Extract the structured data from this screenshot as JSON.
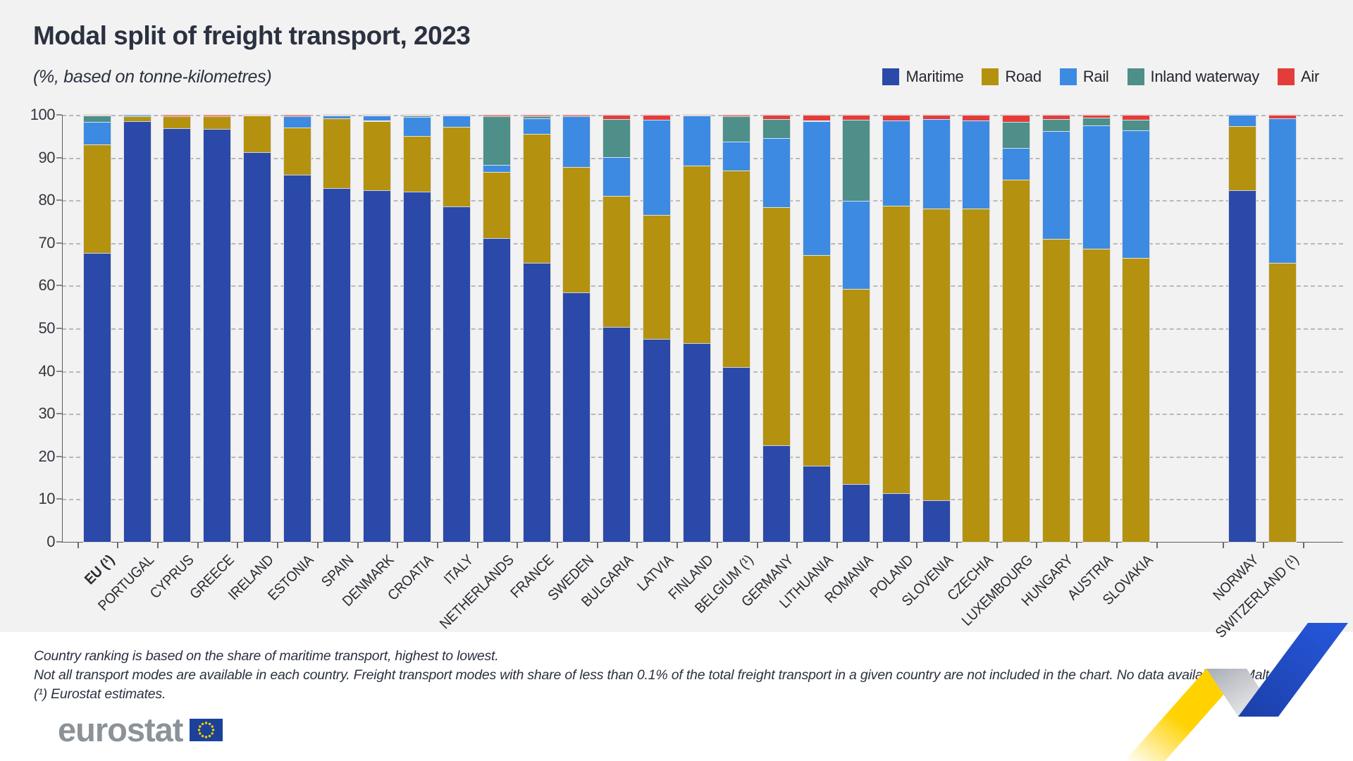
{
  "header": {
    "title": "Modal split of freight transport, 2023",
    "subtitle": "(%, based on tonne-kilometres)"
  },
  "legend": [
    {
      "label": "Maritime",
      "color": "#2b49a8"
    },
    {
      "label": "Road",
      "color": "#b4920f"
    },
    {
      "label": "Rail",
      "color": "#3c8ae2"
    },
    {
      "label": "Inland waterway",
      "color": "#4e8f89"
    },
    {
      "label": "Air",
      "color": "#e33d3b"
    }
  ],
  "chart_data": {
    "type": "bar",
    "stacked": true,
    "title": "Modal split of freight transport, 2023",
    "xlabel": "",
    "ylabel": "%",
    "ylim": [
      0,
      100
    ],
    "yticks": [
      0,
      10,
      20,
      30,
      40,
      50,
      60,
      70,
      80,
      90,
      100
    ],
    "grid": "dashed horizontal",
    "legend_position": "top-right",
    "series_order": [
      "maritime",
      "road",
      "rail",
      "inland_waterway",
      "air"
    ],
    "colors": {
      "maritime": "#2b49a8",
      "road": "#b4920f",
      "rail": "#3c8ae2",
      "inland_waterway": "#4e8f89",
      "air": "#e33d3b"
    },
    "countries": [
      {
        "name": "EU (¹)",
        "bold": true,
        "group": "eu",
        "maritime": 67.7,
        "road": 25.4,
        "rail": 5.2,
        "inland_waterway": 1.5,
        "air": 0.2
      },
      {
        "name": "PORTUGAL",
        "group": "eu",
        "maritime": 98.5,
        "road": 1.2,
        "rail": 0.3,
        "inland_waterway": 0,
        "air": 0
      },
      {
        "name": "CYPRUS",
        "group": "eu",
        "maritime": 96.9,
        "road": 2.8,
        "rail": 0,
        "inland_waterway": 0,
        "air": 0.3
      },
      {
        "name": "GREECE",
        "group": "eu",
        "maritime": 96.7,
        "road": 3.0,
        "rail": 0,
        "inland_waterway": 0,
        "air": 0.3
      },
      {
        "name": "IRELAND",
        "group": "eu",
        "maritime": 91.2,
        "road": 8.6,
        "rail": 0,
        "inland_waterway": 0,
        "air": 0.2
      },
      {
        "name": "ESTONIA",
        "group": "eu",
        "maritime": 85.9,
        "road": 11.1,
        "rail": 2.6,
        "inland_waterway": 0,
        "air": 0.4
      },
      {
        "name": "SPAIN",
        "group": "eu",
        "maritime": 82.9,
        "road": 16.2,
        "rail": 0.7,
        "inland_waterway": 0,
        "air": 0.2
      },
      {
        "name": "DENMARK",
        "group": "eu",
        "maritime": 82.3,
        "road": 16.3,
        "rail": 1.2,
        "inland_waterway": 0,
        "air": 0.2
      },
      {
        "name": "CROATIA",
        "group": "eu",
        "maritime": 82.0,
        "road": 13.0,
        "rail": 4.5,
        "inland_waterway": 0.3,
        "air": 0.2
      },
      {
        "name": "ITALY",
        "group": "eu",
        "maritime": 78.6,
        "road": 18.6,
        "rail": 2.6,
        "inland_waterway": 0,
        "air": 0.2
      },
      {
        "name": "NETHERLANDS",
        "group": "eu",
        "maritime": 71.2,
        "road": 15.4,
        "rail": 1.7,
        "inland_waterway": 11.3,
        "air": 0.4
      },
      {
        "name": "FRANCE",
        "group": "eu",
        "maritime": 65.3,
        "road": 30.3,
        "rail": 3.6,
        "inland_waterway": 0.5,
        "air": 0.3
      },
      {
        "name": "SWEDEN",
        "group": "eu",
        "maritime": 58.5,
        "road": 29.3,
        "rail": 11.9,
        "inland_waterway": 0,
        "air": 0.3
      },
      {
        "name": "BULGARIA",
        "group": "eu",
        "maritime": 50.4,
        "road": 30.7,
        "rail": 9.0,
        "inland_waterway": 8.9,
        "air": 1.0
      },
      {
        "name": "LATVIA",
        "group": "eu",
        "maritime": 47.6,
        "road": 28.9,
        "rail": 22.3,
        "inland_waterway": 0,
        "air": 1.2
      },
      {
        "name": "FINLAND",
        "group": "eu",
        "maritime": 46.6,
        "road": 41.6,
        "rail": 11.6,
        "inland_waterway": 0,
        "air": 0.2
      },
      {
        "name": "BELGIUM (¹)",
        "group": "eu",
        "maritime": 41.0,
        "road": 45.9,
        "rail": 6.9,
        "inland_waterway": 5.9,
        "air": 0.3
      },
      {
        "name": "GERMANY",
        "group": "eu",
        "maritime": 22.6,
        "road": 55.8,
        "rail": 16.2,
        "inland_waterway": 4.4,
        "air": 1.0
      },
      {
        "name": "LITHUANIA",
        "group": "eu",
        "maritime": 17.9,
        "road": 49.3,
        "rail": 31.4,
        "inland_waterway": 0,
        "air": 1.4
      },
      {
        "name": "ROMANIA",
        "group": "eu",
        "maritime": 13.5,
        "road": 45.8,
        "rail": 20.5,
        "inland_waterway": 19.0,
        "air": 1.2
      },
      {
        "name": "POLAND",
        "group": "eu",
        "maritime": 11.4,
        "road": 67.3,
        "rail": 19.9,
        "inland_waterway": 0,
        "air": 1.4
      },
      {
        "name": "SLOVENIA",
        "group": "eu",
        "maritime": 9.7,
        "road": 68.3,
        "rail": 21.0,
        "inland_waterway": 0,
        "air": 1.0
      },
      {
        "name": "CZECHIA",
        "group": "eu",
        "maritime": 0,
        "road": 78.0,
        "rail": 20.7,
        "inland_waterway": 0,
        "air": 1.3
      },
      {
        "name": "LUXEMBOURG",
        "group": "eu",
        "maritime": 0,
        "road": 84.9,
        "rail": 7.3,
        "inland_waterway": 6.1,
        "air": 1.7
      },
      {
        "name": "HUNGARY",
        "group": "eu",
        "maritime": 0,
        "road": 71.0,
        "rail": 25.2,
        "inland_waterway": 2.8,
        "air": 1.0
      },
      {
        "name": "AUSTRIA",
        "group": "eu",
        "maritime": 0,
        "road": 68.7,
        "rail": 28.9,
        "inland_waterway": 1.7,
        "air": 0.7
      },
      {
        "name": "SLOVAKIA",
        "group": "eu",
        "maritime": 0,
        "road": 66.5,
        "rail": 29.9,
        "inland_waterway": 2.5,
        "air": 1.1
      },
      {
        "name": "NORWAY",
        "group": "efta",
        "maritime": 82.4,
        "road": 15.0,
        "rail": 2.6,
        "inland_waterway": 0,
        "air": 0
      },
      {
        "name": "SWITZERLAND (¹)",
        "group": "efta",
        "maritime": 0,
        "road": 65.4,
        "rail": 33.8,
        "inland_waterway": 0,
        "air": 0.8
      }
    ]
  },
  "footnotes": {
    "line1": "Country ranking is based on the share of maritime transport, highest to lowest.",
    "line2": "Not all transport modes are available in each country. Freight transport modes with share of less than 0.1% of the total freight transport in a given country are not included in the chart. No data available for Malta.",
    "line3": "(¹) Eurostat estimates."
  },
  "logo": {
    "text": "eurostat"
  },
  "decor": {
    "ribbon_yellow": "#ffd200",
    "ribbon_blue": "#2150d0",
    "ribbon_gray": "#b9bdc4",
    "flag_blue": "#1b4298",
    "flag_star": "#ffcc00"
  }
}
